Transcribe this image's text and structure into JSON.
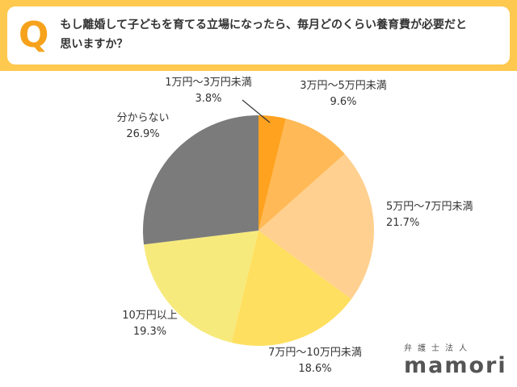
{
  "header": {
    "q_mark": "Q",
    "question_line1": "もし離婚して子どもを育てる立場になったら、毎月どのくらい養育費が必要だと",
    "question_line2": "思いますか？"
  },
  "chart_data": {
    "type": "pie",
    "title": "もし離婚して子どもを育てる立場になったら、毎月どのくらい養育費が必要だと思いますか？",
    "start_angle_deg": -90,
    "direction": "clockwise",
    "legend_position": "outside-labels",
    "slices": [
      {
        "label": "1万円〜3万円未満",
        "pct": 3.8,
        "pct_label": "3.8%",
        "color": "#ffa21f"
      },
      {
        "label": "3万円〜5万円未満",
        "pct": 9.6,
        "pct_label": "9.6%",
        "color": "#ffb956"
      },
      {
        "label": "5万円〜7万円未満",
        "pct": 21.7,
        "pct_label": "21.7%",
        "color": "#ffd08f"
      },
      {
        "label": "7万円〜10万円未満",
        "pct": 18.6,
        "pct_label": "18.6%",
        "color": "#ffdf5f"
      },
      {
        "label": "10万円以上",
        "pct": 19.3,
        "pct_label": "19.3%",
        "color": "#f7ea7c"
      },
      {
        "label": "分からない",
        "pct": 26.9,
        "pct_label": "26.9%",
        "color": "#7b7b7b"
      }
    ]
  },
  "logo": {
    "company_type": "弁護士法人",
    "brand": "mamori"
  },
  "colors": {
    "band": "#ffc94f",
    "q_mark": "#f6a21c",
    "text": "#333333"
  }
}
